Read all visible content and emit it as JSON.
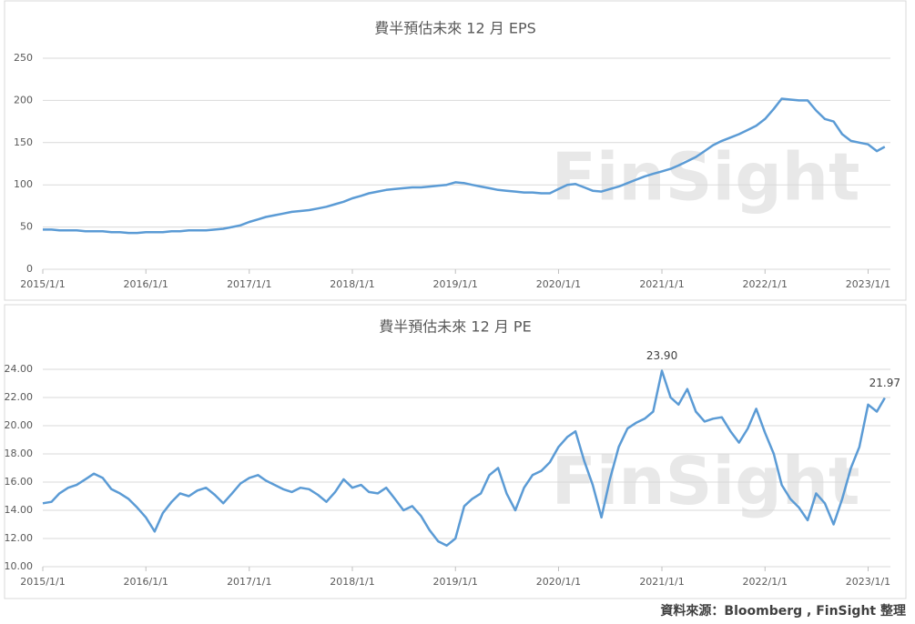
{
  "chart_data": [
    {
      "type": "line",
      "title": "費半預估未來 12 月 EPS",
      "x": [
        "2015/1/1",
        "2015/2/1",
        "2015/3/1",
        "2015/4/1",
        "2015/5/1",
        "2015/6/1",
        "2015/7/1",
        "2015/8/1",
        "2015/9/1",
        "2015/10/1",
        "2015/11/1",
        "2015/12/1",
        "2016/1/1",
        "2016/2/1",
        "2016/3/1",
        "2016/4/1",
        "2016/5/1",
        "2016/6/1",
        "2016/7/1",
        "2016/8/1",
        "2016/9/1",
        "2016/10/1",
        "2016/11/1",
        "2016/12/1",
        "2017/1/1",
        "2017/2/1",
        "2017/3/1",
        "2017/4/1",
        "2017/5/1",
        "2017/6/1",
        "2017/7/1",
        "2017/8/1",
        "2017/9/1",
        "2017/10/1",
        "2017/11/1",
        "2017/12/1",
        "2018/1/1",
        "2018/2/1",
        "2018/3/1",
        "2018/4/1",
        "2018/5/1",
        "2018/6/1",
        "2018/7/1",
        "2018/8/1",
        "2018/9/1",
        "2018/10/1",
        "2018/11/1",
        "2018/12/1",
        "2019/1/1",
        "2019/2/1",
        "2019/3/1",
        "2019/4/1",
        "2019/5/1",
        "2019/6/1",
        "2019/7/1",
        "2019/8/1",
        "2019/9/1",
        "2019/10/1",
        "2019/11/1",
        "2019/12/1",
        "2020/1/1",
        "2020/2/1",
        "2020/3/1",
        "2020/4/1",
        "2020/5/1",
        "2020/6/1",
        "2020/7/1",
        "2020/8/1",
        "2020/9/1",
        "2020/10/1",
        "2020/11/1",
        "2020/12/1",
        "2021/1/1",
        "2021/2/1",
        "2021/3/1",
        "2021/4/1",
        "2021/5/1",
        "2021/6/1",
        "2021/7/1",
        "2021/8/1",
        "2021/9/1",
        "2021/10/1",
        "2021/11/1",
        "2021/12/1",
        "2022/1/1",
        "2022/2/1",
        "2022/3/1",
        "2022/4/1",
        "2022/5/1",
        "2022/6/1",
        "2022/7/1",
        "2022/8/1",
        "2022/9/1",
        "2022/10/1",
        "2022/11/1",
        "2022/12/1",
        "2023/1/1",
        "2023/2/1",
        "2023/3/1"
      ],
      "series": [
        {
          "color": "#5b9bd5",
          "values": [
            47,
            47,
            46,
            46,
            46,
            45,
            45,
            45,
            44,
            44,
            43,
            43,
            44,
            44,
            44,
            45,
            45,
            46,
            46,
            46,
            47,
            48,
            50,
            52,
            56,
            59,
            62,
            64,
            66,
            68,
            69,
            70,
            72,
            74,
            77,
            80,
            84,
            87,
            90,
            92,
            94,
            95,
            96,
            97,
            97,
            98,
            99,
            100,
            103,
            102,
            100,
            98,
            96,
            94,
            93,
            92,
            91,
            91,
            90,
            90,
            95,
            100,
            101,
            97,
            93,
            92,
            95,
            98,
            102,
            106,
            110,
            113,
            116,
            119,
            123,
            128,
            133,
            140,
            147,
            152,
            156,
            160,
            165,
            170,
            178,
            190,
            202,
            201,
            200,
            200,
            188,
            178,
            175,
            160,
            152,
            150,
            148,
            140,
            145
          ]
        }
      ],
      "xticks": [
        "2015/1/1",
        "2016/1/1",
        "2017/1/1",
        "2018/1/1",
        "2019/1/1",
        "2020/1/1",
        "2021/1/1",
        "2022/1/1",
        "2023/1/1"
      ],
      "xlim": [
        "2015/1/1",
        "2023/3/21"
      ],
      "ylim": [
        0,
        250
      ],
      "yticks": [
        0,
        50,
        100,
        150,
        200,
        250
      ],
      "grid": true,
      "watermark": "FinSight"
    },
    {
      "type": "line",
      "title": "費半預估未來 12 月 PE",
      "x": [
        "2015/1/1",
        "2015/2/1",
        "2015/3/1",
        "2015/4/1",
        "2015/5/1",
        "2015/6/1",
        "2015/7/1",
        "2015/8/1",
        "2015/9/1",
        "2015/10/1",
        "2015/11/1",
        "2015/12/1",
        "2016/1/1",
        "2016/2/1",
        "2016/3/1",
        "2016/4/1",
        "2016/5/1",
        "2016/6/1",
        "2016/7/1",
        "2016/8/1",
        "2016/9/1",
        "2016/10/1",
        "2016/11/1",
        "2016/12/1",
        "2017/1/1",
        "2017/2/1",
        "2017/3/1",
        "2017/4/1",
        "2017/5/1",
        "2017/6/1",
        "2017/7/1",
        "2017/8/1",
        "2017/9/1",
        "2017/10/1",
        "2017/11/1",
        "2017/12/1",
        "2018/1/1",
        "2018/2/1",
        "2018/3/1",
        "2018/4/1",
        "2018/5/1",
        "2018/6/1",
        "2018/7/1",
        "2018/8/1",
        "2018/9/1",
        "2018/10/1",
        "2018/11/1",
        "2018/12/1",
        "2019/1/1",
        "2019/2/1",
        "2019/3/1",
        "2019/4/1",
        "2019/5/1",
        "2019/6/1",
        "2019/7/1",
        "2019/8/1",
        "2019/9/1",
        "2019/10/1",
        "2019/11/1",
        "2019/12/1",
        "2020/1/1",
        "2020/2/1",
        "2020/3/1",
        "2020/4/1",
        "2020/5/1",
        "2020/6/1",
        "2020/7/1",
        "2020/8/1",
        "2020/9/1",
        "2020/10/1",
        "2020/11/1",
        "2020/12/1",
        "2021/1/1",
        "2021/2/1",
        "2021/3/1",
        "2021/4/1",
        "2021/5/1",
        "2021/6/1",
        "2021/7/1",
        "2021/8/1",
        "2021/9/1",
        "2021/10/1",
        "2021/11/1",
        "2021/12/1",
        "2022/1/1",
        "2022/2/1",
        "2022/3/1",
        "2022/4/1",
        "2022/5/1",
        "2022/6/1",
        "2022/7/1",
        "2022/8/1",
        "2022/9/1",
        "2022/10/1",
        "2022/11/1",
        "2022/12/1",
        "2023/1/1",
        "2023/2/1",
        "2023/3/1"
      ],
      "series": [
        {
          "color": "#5b9bd5",
          "values": [
            14.5,
            14.6,
            15.2,
            15.6,
            15.8,
            16.2,
            16.6,
            16.3,
            15.5,
            15.2,
            14.8,
            14.2,
            13.5,
            12.5,
            13.8,
            14.6,
            15.2,
            15.0,
            15.4,
            15.6,
            15.1,
            14.5,
            15.2,
            15.9,
            16.3,
            16.5,
            16.1,
            15.8,
            15.5,
            15.3,
            15.6,
            15.5,
            15.1,
            14.6,
            15.3,
            16.2,
            15.6,
            15.8,
            15.3,
            15.2,
            15.6,
            14.8,
            14.0,
            14.3,
            13.6,
            12.6,
            11.8,
            11.5,
            12.0,
            14.3,
            14.8,
            15.2,
            16.5,
            17.0,
            15.2,
            14.0,
            15.6,
            16.5,
            16.8,
            17.4,
            18.5,
            19.2,
            19.6,
            17.5,
            15.8,
            13.5,
            16.2,
            18.5,
            19.8,
            20.2,
            20.5,
            21.0,
            23.9,
            22.0,
            21.5,
            22.6,
            21.0,
            20.3,
            20.5,
            20.6,
            19.6,
            18.8,
            19.8,
            21.2,
            19.5,
            18.0,
            15.8,
            14.8,
            14.2,
            13.3,
            15.2,
            14.5,
            13.0,
            14.8,
            17.0,
            18.5,
            21.5,
            21.0,
            21.97
          ]
        }
      ],
      "annotations": [
        {
          "x": "2021/1/1",
          "value": 23.9,
          "label": "23.90"
        },
        {
          "x": "2023/3/1",
          "value": 21.97,
          "label": "21.97"
        }
      ],
      "xticks": [
        "2015/1/1",
        "2016/1/1",
        "2017/1/1",
        "2018/1/1",
        "2019/1/1",
        "2020/1/1",
        "2021/1/1",
        "2022/1/1",
        "2023/1/1"
      ],
      "xlim": [
        "2015/1/1",
        "2023/3/21"
      ],
      "ylim": [
        10,
        24
      ],
      "yticks": [
        {
          "value": 10,
          "label": "10.00"
        },
        {
          "value": 12,
          "label": "12.00"
        },
        {
          "value": 14,
          "label": "14.00"
        },
        {
          "value": 16,
          "label": "16.00"
        },
        {
          "value": 18,
          "label": "18.00"
        },
        {
          "value": 20,
          "label": "20.00"
        },
        {
          "value": 22,
          "label": "22.00"
        },
        {
          "value": 24,
          "label": "24.00"
        }
      ],
      "grid": true,
      "watermark": "FinSight"
    }
  ],
  "source": "資料來源：Bloomberg , FinSight 整理"
}
